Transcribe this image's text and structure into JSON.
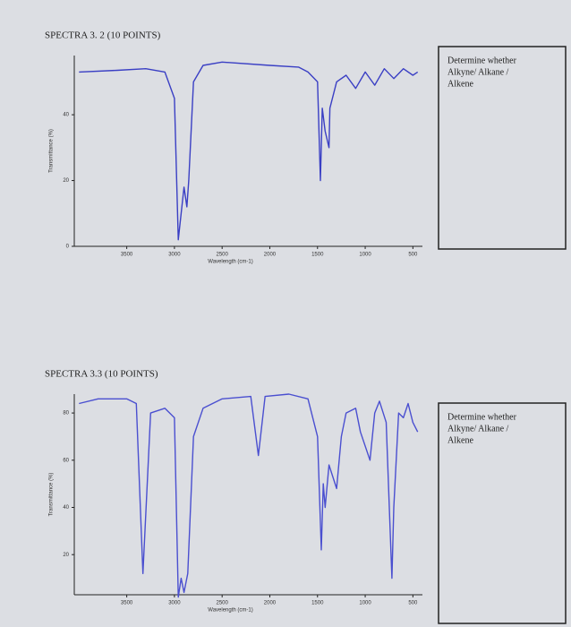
{
  "chart_data": [
    {
      "type": "line",
      "title": "SPECTRA 3. 2 (10 POINTS)",
      "x_label": "Wavelength (cm-1)",
      "y_label": "Transmittance (%)",
      "annotation": [
        "Determine whether",
        "Alkyne/ Alkane /",
        "Alkene"
      ],
      "color": "#3a3fc4",
      "x": [
        4000,
        3600,
        3300,
        3100,
        3000,
        2960,
        2930,
        2900,
        2870,
        2850,
        2800,
        2700,
        2500,
        2000,
        1700,
        1600,
        1500,
        1470,
        1450,
        1420,
        1380,
        1370,
        1300,
        1200,
        1100,
        1000,
        900,
        800,
        700,
        600,
        500,
        450
      ],
      "values": [
        53,
        53.5,
        54,
        53,
        45,
        2,
        10,
        18,
        12,
        20,
        50,
        55,
        56,
        55,
        54.5,
        53,
        50,
        20,
        42,
        35,
        30,
        42,
        50,
        52,
        48,
        53,
        49,
        54,
        51,
        54,
        52,
        53
      ],
      "xlim": [
        4050,
        400
      ],
      "ylim": [
        0,
        58
      ],
      "xticks": [
        3500,
        3000,
        2500,
        2000,
        1500,
        1000,
        500
      ],
      "yticks": [
        0,
        20,
        40
      ],
      "grid": false
    },
    {
      "type": "line",
      "title": "SPECTRA 3.3 (10 POINTS)",
      "x_label": "Wavelength (cm-1)",
      "y_label": "Transmittance (%)",
      "annotation": [
        "Determine whether",
        "Alkyne/ Alkane /",
        "Alkene"
      ],
      "color": "#4a4fd0",
      "x": [
        4000,
        3800,
        3500,
        3400,
        3330,
        3250,
        3100,
        3000,
        2960,
        2930,
        2900,
        2860,
        2800,
        2700,
        2500,
        2200,
        2120,
        2050,
        1800,
        1600,
        1500,
        1460,
        1440,
        1420,
        1380,
        1300,
        1250,
        1200,
        1100,
        1050,
        950,
        900,
        850,
        780,
        720,
        700,
        650,
        600,
        550,
        500,
        450
      ],
      "values": [
        84,
        86,
        86,
        84,
        12,
        80,
        82,
        78,
        2,
        10,
        4,
        12,
        70,
        82,
        86,
        87,
        62,
        87,
        88,
        86,
        70,
        22,
        50,
        40,
        58,
        48,
        70,
        80,
        82,
        72,
        60,
        80,
        85,
        76,
        10,
        40,
        80,
        78,
        84,
        76,
        72
      ],
      "xlim": [
        4050,
        400
      ],
      "ylim": [
        3,
        88
      ],
      "xticks": [
        3500,
        3000,
        2500,
        2000,
        1500,
        1000,
        500
      ],
      "yticks": [
        20,
        40,
        60,
        80
      ],
      "grid": false
    }
  ]
}
